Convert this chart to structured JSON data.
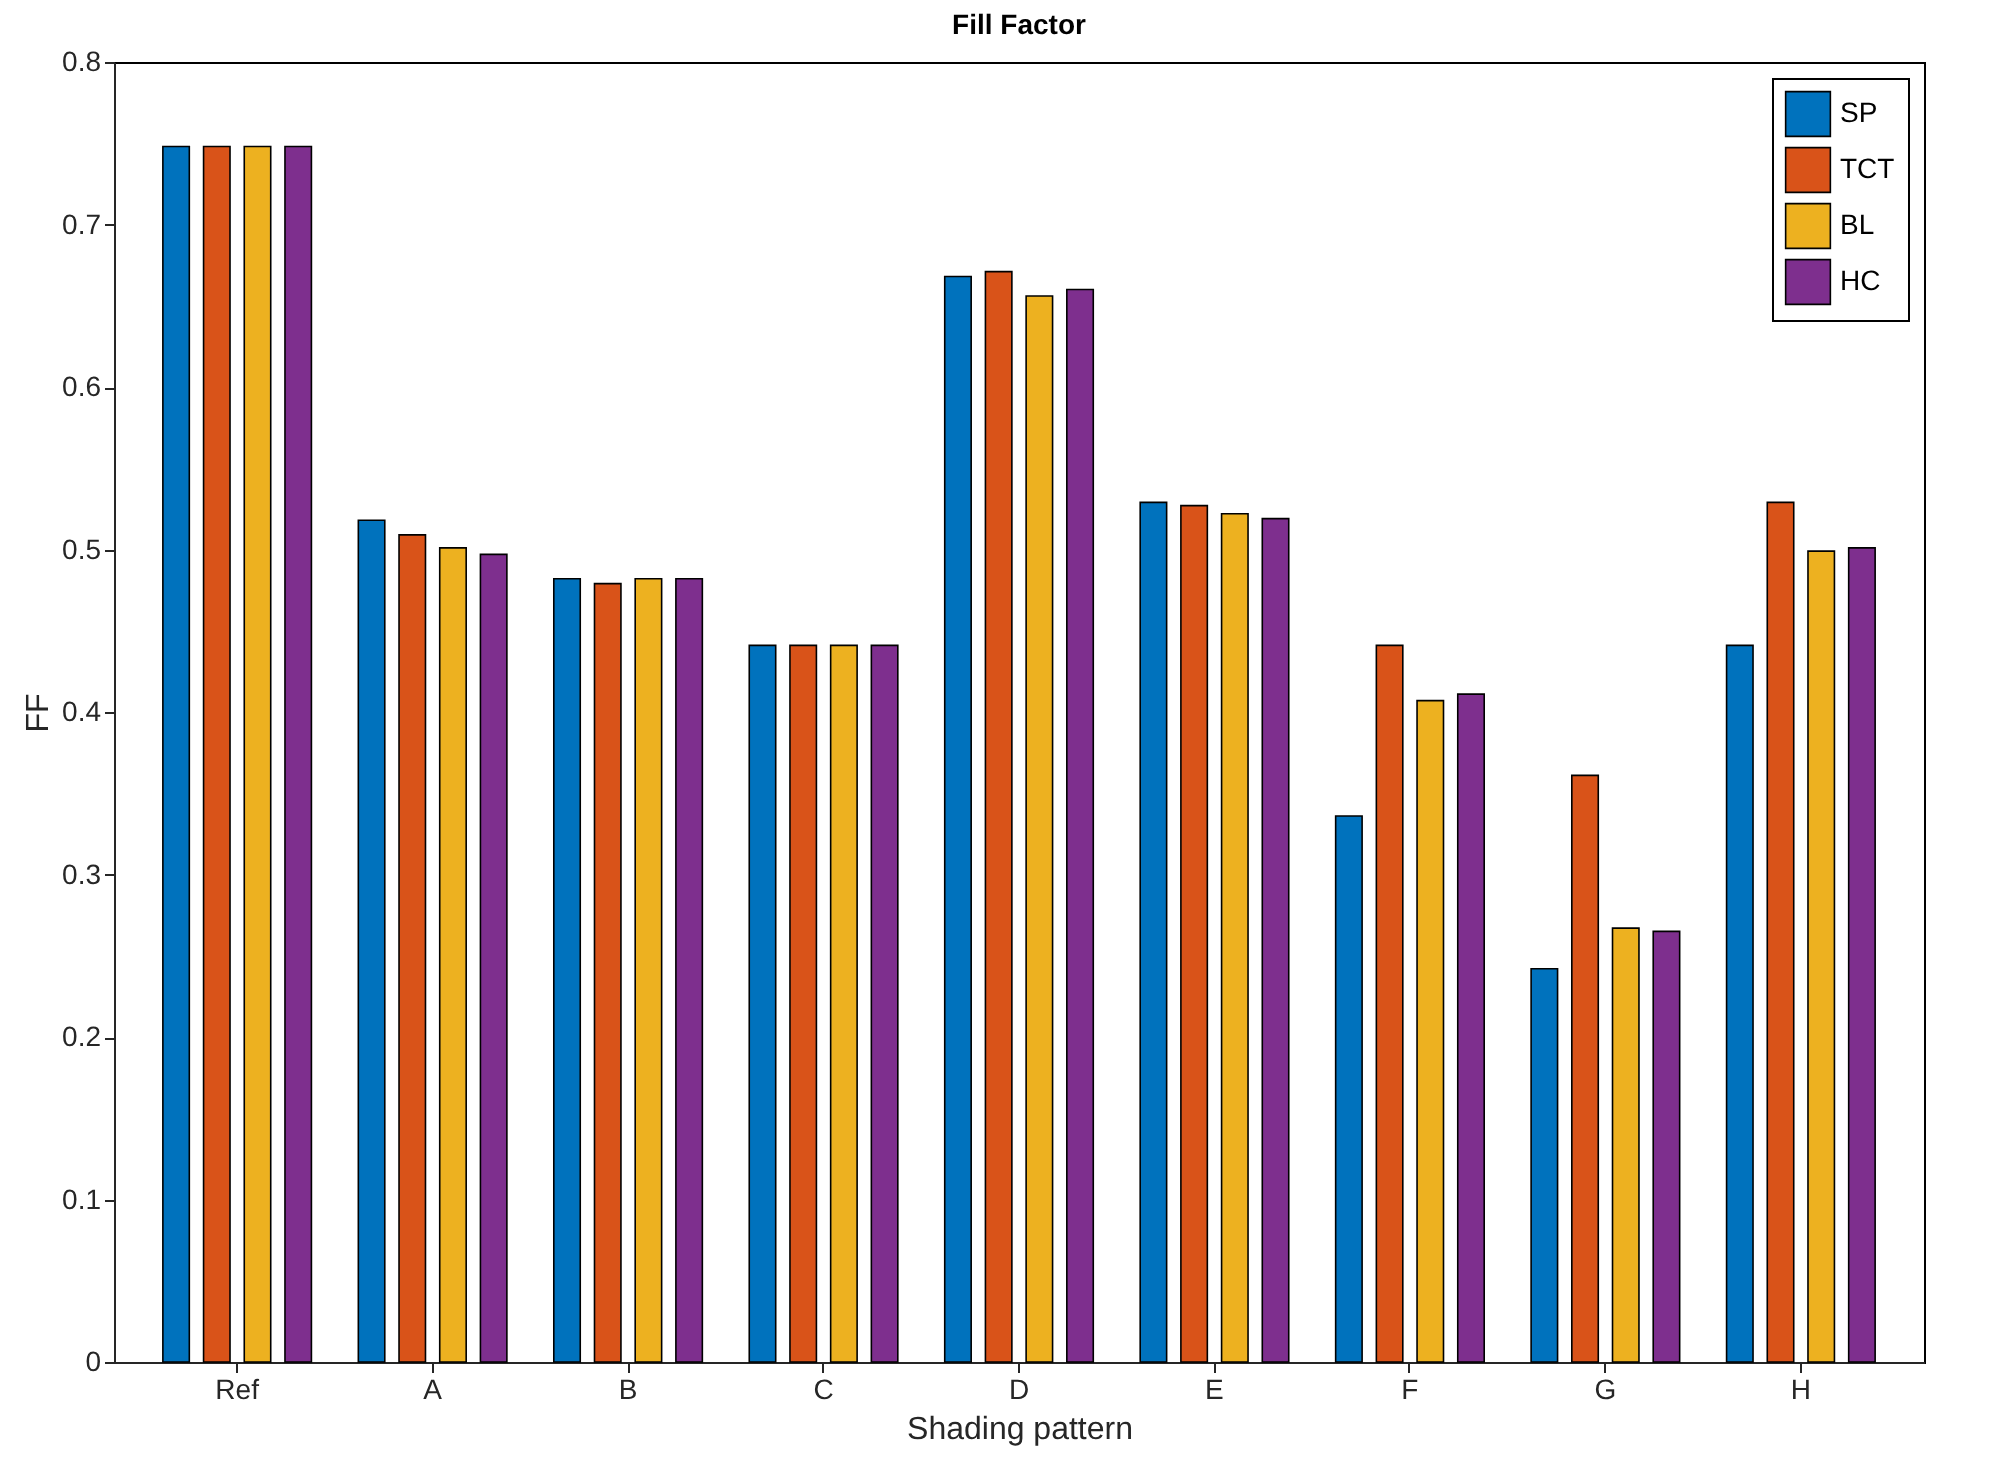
{
  "chart_data": {
    "type": "bar",
    "title": "Fill Factor",
    "xlabel": "Shading pattern",
    "ylabel": "FF",
    "categories": [
      "Ref",
      "A",
      "B",
      "C",
      "D",
      "E",
      "F",
      "G",
      "H"
    ],
    "series": [
      {
        "name": "SP",
        "color": "#0072bd",
        "values": [
          0.748,
          0.518,
          0.482,
          0.441,
          0.668,
          0.529,
          0.336,
          0.242,
          0.441
        ]
      },
      {
        "name": "TCT",
        "color": "#d95319",
        "values": [
          0.748,
          0.509,
          0.479,
          0.441,
          0.671,
          0.527,
          0.441,
          0.361,
          0.529
        ]
      },
      {
        "name": "BL",
        "color": "#edb120",
        "values": [
          0.748,
          0.501,
          0.482,
          0.441,
          0.656,
          0.522,
          0.407,
          0.267,
          0.499
        ]
      },
      {
        "name": "HC",
        "color": "#7e2f8e",
        "values": [
          0.748,
          0.497,
          0.482,
          0.441,
          0.66,
          0.519,
          0.411,
          0.265,
          0.501
        ]
      }
    ],
    "ylim": [
      0,
      0.8
    ],
    "yticks": [
      0,
      0.1,
      0.2,
      0.3,
      0.4,
      0.5,
      0.6,
      0.7,
      0.8
    ],
    "grid": false,
    "legend": "top right"
  }
}
